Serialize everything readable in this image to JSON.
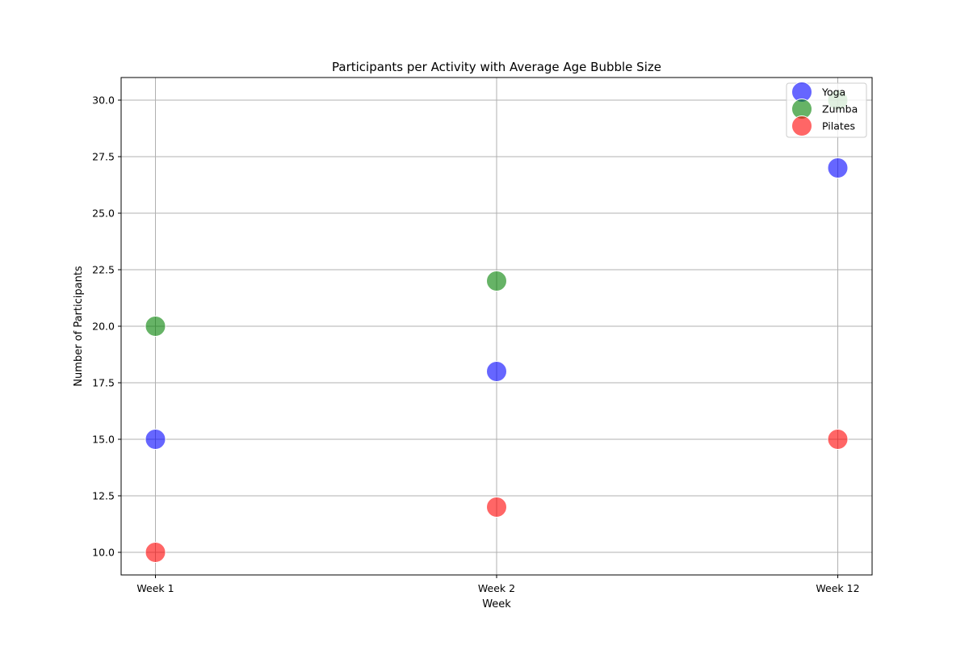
{
  "chart_data": {
    "type": "scatter",
    "title": "Participants per Activity with Average Age Bubble Size",
    "xlabel": "Week",
    "ylabel": "Number of Participants",
    "categories": [
      "Week 1",
      "Week 2",
      "Week 12"
    ],
    "ylim": [
      9.0,
      31.0
    ],
    "yticks": [
      10.0,
      12.5,
      15.0,
      17.5,
      20.0,
      22.5,
      25.0,
      27.5,
      30.0
    ],
    "ytick_labels": [
      "10.0",
      "12.5",
      "15.0",
      "17.5",
      "20.0",
      "22.5",
      "25.0",
      "27.5",
      "30.0"
    ],
    "grid": true,
    "legend_position": "top-right",
    "series": [
      {
        "name": "Yoga",
        "color": "#0000ff",
        "values": [
          15,
          18,
          27
        ]
      },
      {
        "name": "Zumba",
        "color": "#008000",
        "values": [
          20,
          22,
          30
        ]
      },
      {
        "name": "Pilates",
        "color": "#ff0000",
        "values": [
          10,
          12,
          15
        ]
      }
    ]
  }
}
